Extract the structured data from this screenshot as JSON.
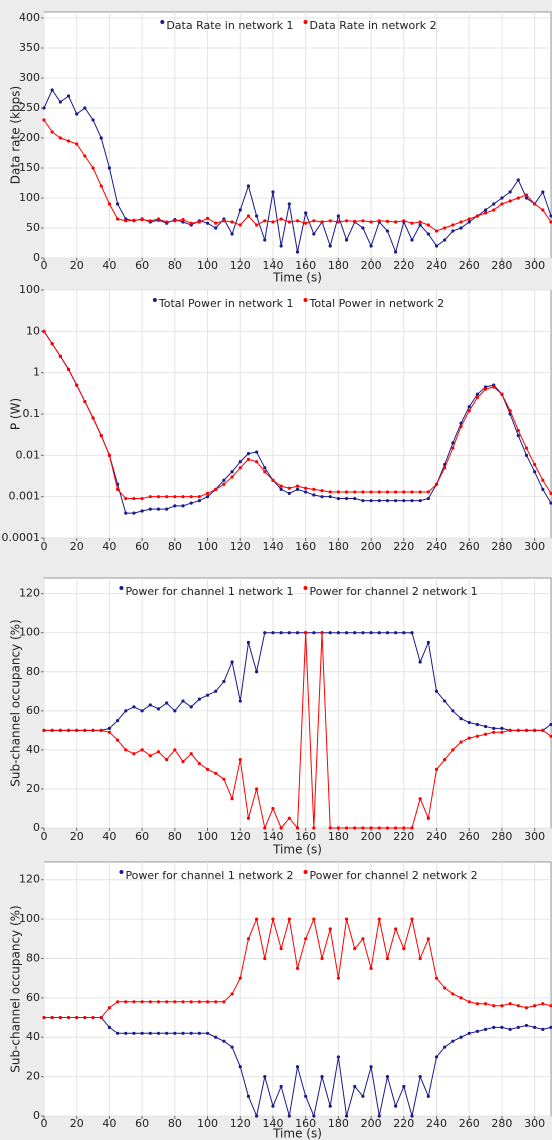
{
  "chart_data": [
    {
      "type": "line",
      "ylabel": "Data rate (kbps)",
      "xlabel": "Time (s)",
      "x": [
        0,
        5,
        10,
        15,
        20,
        25,
        30,
        35,
        40,
        45,
        50,
        55,
        60,
        65,
        70,
        75,
        80,
        85,
        90,
        95,
        100,
        105,
        110,
        115,
        120,
        125,
        130,
        135,
        140,
        145,
        150,
        155,
        160,
        165,
        170,
        175,
        180,
        185,
        190,
        195,
        200,
        205,
        210,
        215,
        220,
        225,
        230,
        235,
        240,
        245,
        250,
        255,
        260,
        265,
        270,
        275,
        280,
        285,
        290,
        295,
        300,
        305,
        310
      ],
      "series": [
        {
          "name": "Data Rate in network  1",
          "color": "#1a1a8c",
          "values": [
            250,
            280,
            260,
            270,
            240,
            250,
            230,
            200,
            150,
            90,
            65,
            62,
            65,
            60,
            63,
            58,
            64,
            60,
            55,
            62,
            58,
            50,
            65,
            40,
            80,
            120,
            70,
            30,
            110,
            20,
            90,
            10,
            75,
            40,
            60,
            20,
            70,
            30,
            60,
            50,
            20,
            60,
            45,
            10,
            60,
            30,
            55,
            40,
            20,
            30,
            45,
            50,
            60,
            70,
            80,
            90,
            100,
            110,
            130,
            100,
            90,
            110,
            70
          ]
        },
        {
          "name": "Data Rate in network  2",
          "color": "#ff0000",
          "values": [
            230,
            210,
            200,
            195,
            190,
            170,
            150,
            120,
            90,
            65,
            62,
            63,
            64,
            62,
            65,
            60,
            62,
            64,
            58,
            60,
            66,
            58,
            62,
            60,
            55,
            70,
            55,
            62,
            60,
            65,
            60,
            62,
            58,
            62,
            60,
            62,
            60,
            62,
            61,
            62,
            60,
            62,
            61,
            60,
            62,
            58,
            60,
            55,
            45,
            50,
            55,
            60,
            65,
            70,
            75,
            80,
            90,
            95,
            100,
            105,
            90,
            80,
            60
          ]
        }
      ],
      "xlim": [
        0,
        310
      ],
      "xticks": [
        0,
        20,
        40,
        60,
        80,
        100,
        120,
        140,
        160,
        180,
        200,
        220,
        240,
        260,
        280,
        300
      ],
      "ylim": [
        0,
        410
      ],
      "yticks": [
        0,
        50,
        100,
        150,
        200,
        250,
        300,
        350,
        400
      ],
      "grid": true
    },
    {
      "type": "line",
      "ylabel": "P (W)",
      "yscale": "log",
      "x": [
        0,
        5,
        10,
        15,
        20,
        25,
        30,
        35,
        40,
        45,
        50,
        55,
        60,
        65,
        70,
        75,
        80,
        85,
        90,
        95,
        100,
        105,
        110,
        115,
        120,
        125,
        130,
        135,
        140,
        145,
        150,
        155,
        160,
        165,
        170,
        175,
        180,
        185,
        190,
        195,
        200,
        205,
        210,
        215,
        220,
        225,
        230,
        235,
        240,
        245,
        250,
        255,
        260,
        265,
        270,
        275,
        280,
        285,
        290,
        295,
        300,
        305,
        310
      ],
      "series": [
        {
          "name": "Total Power in network 1",
          "color": "#1a1a8c",
          "values": [
            10,
            5,
            2.5,
            1.2,
            0.5,
            0.2,
            0.08,
            0.03,
            0.01,
            0.002,
            0.0004,
            0.0004,
            0.00045,
            0.0005,
            0.0005,
            0.0005,
            0.0006,
            0.0006,
            0.0007,
            0.0008,
            0.001,
            0.0015,
            0.0025,
            0.004,
            0.007,
            0.011,
            0.012,
            0.005,
            0.0025,
            0.0015,
            0.0012,
            0.0015,
            0.0013,
            0.0011,
            0.001,
            0.001,
            0.0009,
            0.0009,
            0.0009,
            0.0008,
            0.0008,
            0.0008,
            0.0008,
            0.0008,
            0.0008,
            0.0008,
            0.0008,
            0.0009,
            0.002,
            0.006,
            0.02,
            0.06,
            0.15,
            0.3,
            0.45,
            0.5,
            0.3,
            0.1,
            0.03,
            0.01,
            0.004,
            0.0015,
            0.0007
          ]
        },
        {
          "name": "Total Power in network 2",
          "color": "#ff0000",
          "values": [
            10,
            5,
            2.5,
            1.2,
            0.5,
            0.2,
            0.08,
            0.03,
            0.01,
            0.0015,
            0.0009,
            0.0009,
            0.0009,
            0.001,
            0.001,
            0.001,
            0.001,
            0.001,
            0.001,
            0.001,
            0.0012,
            0.0015,
            0.002,
            0.003,
            0.005,
            0.008,
            0.007,
            0.004,
            0.0025,
            0.0018,
            0.0016,
            0.0018,
            0.0016,
            0.0015,
            0.0014,
            0.0013,
            0.0013,
            0.0013,
            0.0013,
            0.0013,
            0.0013,
            0.0013,
            0.0013,
            0.0013,
            0.0013,
            0.0013,
            0.0013,
            0.0013,
            0.002,
            0.005,
            0.015,
            0.05,
            0.12,
            0.25,
            0.4,
            0.45,
            0.3,
            0.12,
            0.04,
            0.015,
            0.006,
            0.0025,
            0.0012
          ]
        }
      ],
      "xlim": [
        0,
        310
      ],
      "xticks": [
        0,
        20,
        40,
        60,
        80,
        100,
        120,
        140,
        160,
        180,
        200,
        220,
        240,
        260,
        280,
        300
      ],
      "ylim": [
        0.0001,
        100
      ],
      "yticks": [
        0.0001,
        0.001,
        0.01,
        0.1,
        1,
        10,
        100
      ],
      "grid": true
    },
    {
      "type": "line",
      "ylabel": "Sub-channel occupancy (%)",
      "xlabel": "Time (s)",
      "x": [
        0,
        5,
        10,
        15,
        20,
        25,
        30,
        35,
        40,
        45,
        50,
        55,
        60,
        65,
        70,
        75,
        80,
        85,
        90,
        95,
        100,
        105,
        110,
        115,
        120,
        125,
        130,
        135,
        140,
        145,
        150,
        155,
        160,
        165,
        170,
        175,
        180,
        185,
        190,
        195,
        200,
        205,
        210,
        215,
        220,
        225,
        230,
        235,
        240,
        245,
        250,
        255,
        260,
        265,
        270,
        275,
        280,
        285,
        290,
        295,
        300,
        305,
        310
      ],
      "series": [
        {
          "name": "Power for channel 1 network  1",
          "color": "#1a1a8c",
          "values": [
            50,
            50,
            50,
            50,
            50,
            50,
            50,
            50,
            51,
            55,
            60,
            62,
            60,
            63,
            61,
            64,
            60,
            65,
            62,
            66,
            68,
            70,
            75,
            85,
            65,
            95,
            80,
            100,
            100,
            100,
            100,
            100,
            100,
            100,
            100,
            100,
            100,
            100,
            100,
            100,
            100,
            100,
            100,
            100,
            100,
            100,
            85,
            95,
            70,
            65,
            60,
            56,
            54,
            53,
            52,
            51,
            51,
            50,
            50,
            50,
            50,
            50,
            53
          ]
        },
        {
          "name": "Power for channel 2 network  1",
          "color": "#ff0000",
          "values": [
            50,
            50,
            50,
            50,
            50,
            50,
            50,
            50,
            49,
            45,
            40,
            38,
            40,
            37,
            39,
            35,
            40,
            34,
            38,
            33,
            30,
            28,
            25,
            15,
            35,
            5,
            20,
            0,
            10,
            0,
            5,
            0,
            100,
            0,
            100,
            0,
            0,
            0,
            0,
            0,
            0,
            0,
            0,
            0,
            0,
            0,
            15,
            5,
            30,
            35,
            40,
            44,
            46,
            47,
            48,
            49,
            49,
            50,
            50,
            50,
            50,
            50,
            47
          ]
        }
      ],
      "xlim": [
        0,
        310
      ],
      "xticks": [
        0,
        20,
        40,
        60,
        80,
        100,
        120,
        140,
        160,
        180,
        200,
        220,
        240,
        260,
        280,
        300
      ],
      "ylim": [
        0,
        128
      ],
      "yticks": [
        0,
        20,
        40,
        60,
        80,
        100,
        120
      ],
      "grid": true
    },
    {
      "type": "line",
      "ylabel": "Sub-channel occupancy (%)",
      "xlabel": "Time (s)",
      "x": [
        0,
        5,
        10,
        15,
        20,
        25,
        30,
        35,
        40,
        45,
        50,
        55,
        60,
        65,
        70,
        75,
        80,
        85,
        90,
        95,
        100,
        105,
        110,
        115,
        120,
        125,
        130,
        135,
        140,
        145,
        150,
        155,
        160,
        165,
        170,
        175,
        180,
        185,
        190,
        195,
        200,
        205,
        210,
        215,
        220,
        225,
        230,
        235,
        240,
        245,
        250,
        255,
        260,
        265,
        270,
        275,
        280,
        285,
        290,
        295,
        300,
        305,
        310
      ],
      "series": [
        {
          "name": "Power for channel 1 network  2",
          "color": "#1a1a8c",
          "values": [
            50,
            50,
            50,
            50,
            50,
            50,
            50,
            50,
            45,
            42,
            42,
            42,
            42,
            42,
            42,
            42,
            42,
            42,
            42,
            42,
            42,
            40,
            38,
            35,
            25,
            10,
            0,
            20,
            5,
            15,
            0,
            25,
            10,
            0,
            20,
            5,
            30,
            0,
            15,
            10,
            25,
            0,
            20,
            5,
            15,
            0,
            20,
            10,
            30,
            35,
            38,
            40,
            42,
            43,
            44,
            45,
            45,
            44,
            45,
            46,
            45,
            44,
            45
          ]
        },
        {
          "name": "Power for channel 2 network  2",
          "color": "#ff0000",
          "values": [
            50,
            50,
            50,
            50,
            50,
            50,
            50,
            50,
            55,
            58,
            58,
            58,
            58,
            58,
            58,
            58,
            58,
            58,
            58,
            58,
            58,
            58,
            58,
            62,
            70,
            90,
            100,
            80,
            100,
            85,
            100,
            75,
            90,
            100,
            80,
            95,
            70,
            100,
            85,
            90,
            75,
            100,
            80,
            95,
            85,
            100,
            80,
            90,
            70,
            65,
            62,
            60,
            58,
            57,
            57,
            56,
            56,
            57,
            56,
            55,
            56,
            57,
            56
          ]
        }
      ],
      "xlim": [
        0,
        310
      ],
      "xticks": [
        0,
        20,
        40,
        60,
        80,
        100,
        120,
        140,
        160,
        180,
        200,
        220,
        240,
        260,
        280,
        300
      ],
      "ylim": [
        0,
        129
      ],
      "yticks": [
        0,
        20,
        40,
        60,
        80,
        100,
        120
      ],
      "grid": true
    }
  ]
}
